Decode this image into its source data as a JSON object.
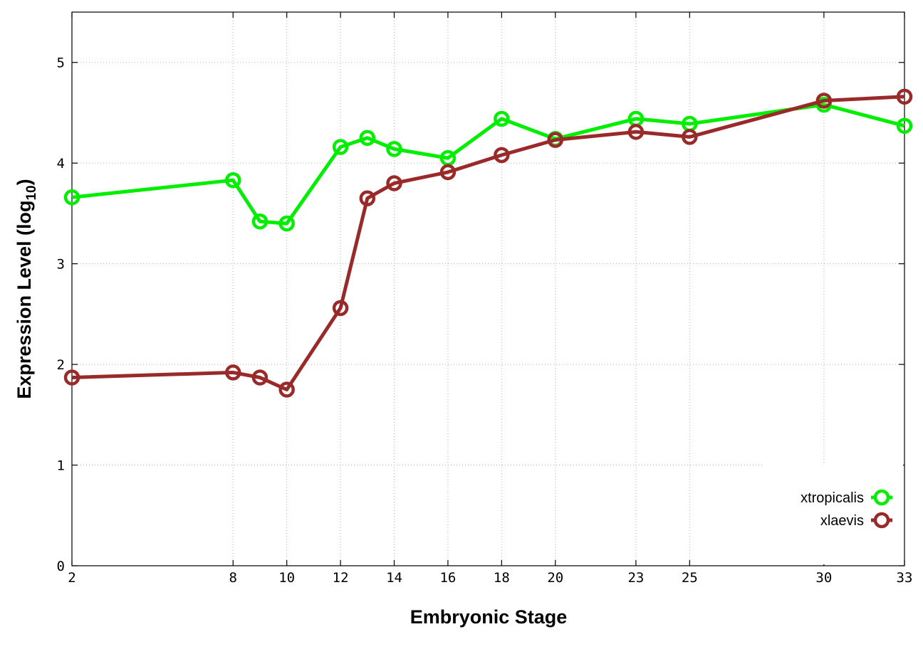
{
  "chart_data": {
    "type": "line",
    "title": "",
    "xlabel": "Embryonic Stage",
    "ylabel": "Expression Level (log",
    "ylabel_subscript": "10",
    "ylabel_suffix": ")",
    "x": [
      2,
      8,
      9,
      10,
      12,
      13,
      14,
      16,
      18,
      20,
      23,
      25,
      30,
      33
    ],
    "x_tick_labels": [
      "2",
      "8",
      "10",
      "12",
      "14",
      "16",
      "18",
      "20",
      "23",
      "25",
      "30",
      "33"
    ],
    "y_tick_labels": [
      "0",
      "1",
      "2",
      "3",
      "4",
      "5"
    ],
    "xlim": [
      2,
      33
    ],
    "ylim": [
      0,
      5.5
    ],
    "grid": true,
    "legend_position": "bottom-right",
    "series": [
      {
        "name": "xtropicalis",
        "color": "#00ee00",
        "values": [
          3.66,
          3.83,
          3.42,
          3.4,
          4.16,
          4.25,
          4.14,
          4.05,
          4.44,
          4.24,
          4.44,
          4.39,
          4.58,
          4.37
        ]
      },
      {
        "name": "xlaevis",
        "color": "#9a2a2a",
        "values": [
          1.87,
          1.92,
          1.87,
          1.75,
          2.56,
          3.65,
          3.8,
          3.91,
          4.08,
          4.23,
          4.31,
          4.26,
          4.62,
          4.66
        ]
      }
    ]
  }
}
